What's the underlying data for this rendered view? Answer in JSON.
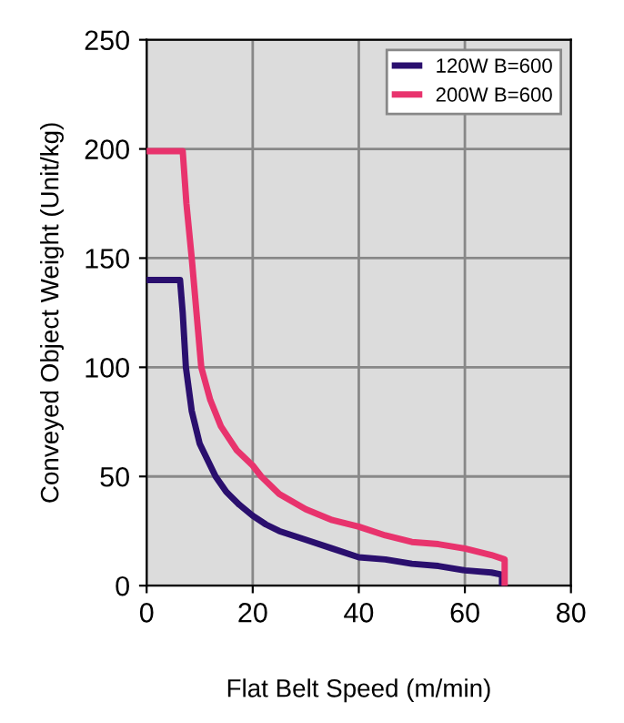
{
  "chart_data": {
    "type": "line",
    "xlabel": "Flat Belt Speed (m/min)",
    "ylabel": "Conveyed Object Weight (Unit/kg)",
    "xlim": [
      0,
      80
    ],
    "ylim": [
      0,
      250
    ],
    "xticks": [
      0,
      20,
      40,
      60,
      80
    ],
    "yticks": [
      0,
      50,
      100,
      150,
      200,
      250
    ],
    "grid": true,
    "legend": "top right",
    "marker": "none",
    "line_style": "solid",
    "series": [
      {
        "name": "120W B=600",
        "color": "#2a0f6e",
        "x": [
          0,
          6.3,
          6.8,
          7.4,
          8.5,
          10,
          12,
          13,
          15,
          17.5,
          20,
          22.5,
          25,
          30,
          35,
          40,
          45,
          50,
          55,
          60,
          65,
          67,
          67
        ],
        "values": [
          140,
          140,
          125,
          100,
          80,
          65,
          55,
          50,
          43,
          37,
          32,
          28,
          25,
          21,
          17,
          13,
          12,
          10,
          9,
          7,
          6,
          5,
          0
        ]
      },
      {
        "name": "200W B=600",
        "color": "#e8336d",
        "x": [
          0,
          6.8,
          7.5,
          8.5,
          10.3,
          12,
          14,
          17,
          20,
          21.6,
          25,
          30,
          35,
          40,
          45,
          50,
          55,
          60,
          65,
          67.5,
          67.5
        ],
        "values": [
          199,
          199,
          175,
          150,
          100,
          85,
          73,
          62,
          55,
          50,
          42,
          35,
          30,
          27,
          23,
          20,
          19,
          17,
          14,
          12,
          0
        ]
      }
    ]
  }
}
